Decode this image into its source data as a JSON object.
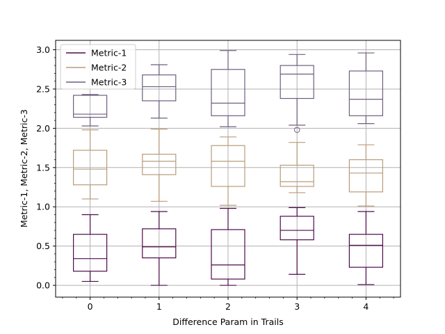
{
  "chart_data": {
    "type": "box",
    "xlabel": "Difference Param in Trails",
    "ylabel": "Metric-1, Metric-2, Metric-3",
    "categories": [
      "0",
      "1",
      "2",
      "3",
      "4"
    ],
    "ylim": [
      -0.15,
      3.12
    ],
    "yticks": [
      0.0,
      0.5,
      1.0,
      1.5,
      2.0,
      2.5,
      3.0
    ],
    "ytick_labels": [
      "0.0",
      "0.5",
      "1.0",
      "1.5",
      "2.0",
      "2.5",
      "3.0"
    ],
    "grid": true,
    "legend_position": "top-left",
    "series": [
      {
        "name": "Metric-1",
        "color": "#4d0a4a",
        "boxes": [
          {
            "whislo": 0.05,
            "q1": 0.18,
            "med": 0.34,
            "q3": 0.65,
            "whishi": 0.9,
            "fliers": []
          },
          {
            "whislo": 0.0,
            "q1": 0.35,
            "med": 0.49,
            "q3": 0.72,
            "whishi": 0.94,
            "fliers": []
          },
          {
            "whislo": 0.0,
            "q1": 0.08,
            "med": 0.26,
            "q3": 0.71,
            "whishi": 0.98,
            "fliers": []
          },
          {
            "whislo": 0.14,
            "q1": 0.58,
            "med": 0.7,
            "q3": 0.88,
            "whishi": 0.99,
            "fliers": []
          },
          {
            "whislo": 0.01,
            "q1": 0.23,
            "med": 0.51,
            "q3": 0.65,
            "whishi": 0.94,
            "fliers": []
          }
        ]
      },
      {
        "name": "Metric-2",
        "color": "#b89b7a",
        "boxes": [
          {
            "whislo": 1.1,
            "q1": 1.28,
            "med": 1.48,
            "q3": 1.72,
            "whishi": 1.98,
            "fliers": []
          },
          {
            "whislo": 1.07,
            "q1": 1.41,
            "med": 1.58,
            "q3": 1.67,
            "whishi": 1.99,
            "fliers": []
          },
          {
            "whislo": 1.02,
            "q1": 1.26,
            "med": 1.58,
            "q3": 1.78,
            "whishi": 1.89,
            "fliers": []
          },
          {
            "whislo": 1.18,
            "q1": 1.26,
            "med": 1.32,
            "q3": 1.53,
            "whishi": 1.82,
            "fliers": []
          },
          {
            "whislo": 1.01,
            "q1": 1.19,
            "med": 1.43,
            "q3": 1.6,
            "whishi": 1.79,
            "fliers": []
          }
        ]
      },
      {
        "name": "Metric-3",
        "color": "#6e5e7e",
        "boxes": [
          {
            "whislo": 2.03,
            "q1": 2.14,
            "med": 2.18,
            "q3": 2.42,
            "whishi": 2.43,
            "fliers": []
          },
          {
            "whislo": 2.13,
            "q1": 2.35,
            "med": 2.53,
            "q3": 2.68,
            "whishi": 2.81,
            "fliers": []
          },
          {
            "whislo": 2.02,
            "q1": 2.16,
            "med": 2.32,
            "q3": 2.75,
            "whishi": 2.99,
            "fliers": []
          },
          {
            "whislo": 2.04,
            "q1": 2.38,
            "med": 2.69,
            "q3": 2.8,
            "whishi": 2.94,
            "fliers": [
              1.98
            ]
          },
          {
            "whislo": 2.06,
            "q1": 2.16,
            "med": 2.37,
            "q3": 2.73,
            "whishi": 2.96,
            "fliers": []
          }
        ]
      }
    ]
  }
}
